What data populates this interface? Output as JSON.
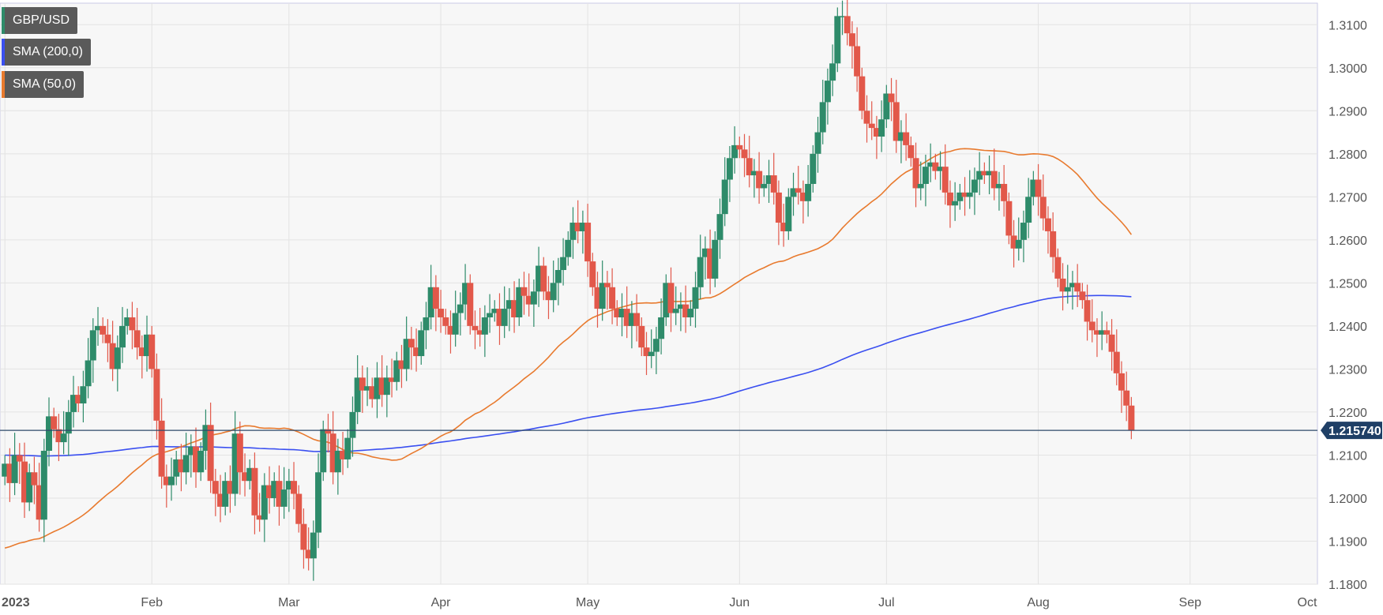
{
  "chart_data": {
    "type": "candlestick",
    "symbol": "GBP/USD",
    "legend": [
      {
        "label": "GBP/USD",
        "color": "#2e8b6a"
      },
      {
        "label": "SMA (200,0)",
        "color": "#3a4ff0"
      },
      {
        "label": "SMA (50,0)",
        "color": "#e87a2e"
      }
    ],
    "current_price": "1.215740",
    "current_price_value": 1.21574,
    "x_ticks": [
      "2023",
      "Feb",
      "Mar",
      "Apr",
      "May",
      "Jun",
      "Jul",
      "Aug",
      "Sep",
      "Oct"
    ],
    "y_ticks": [
      "1.3100",
      "1.3000",
      "1.2900",
      "1.2800",
      "1.2700",
      "1.2600",
      "1.2500",
      "1.2400",
      "1.2300",
      "1.2200",
      "1.2100",
      "1.2000",
      "1.1900",
      "1.1800"
    ],
    "ylim": [
      1.18,
      1.315
    ],
    "xlim_days": [
      -1,
      268
    ],
    "up_color": "#2e8b6a",
    "down_color": "#e2584a",
    "grid": true,
    "closes": [
      [
        0,
        1.208
      ],
      [
        1,
        1.2035
      ],
      [
        2,
        1.21
      ],
      [
        3,
        1.2085
      ],
      [
        4,
        1.199
      ],
      [
        5,
        1.206
      ],
      [
        6,
        1.203
      ],
      [
        7,
        1.195
      ],
      [
        8,
        1.211
      ],
      [
        9,
        1.219
      ],
      [
        10,
        1.216
      ],
      [
        11,
        1.213
      ],
      [
        12,
        1.215
      ],
      [
        13,
        1.22
      ],
      [
        14,
        1.224
      ],
      [
        15,
        1.222
      ],
      [
        16,
        1.226
      ],
      [
        17,
        1.232
      ],
      [
        18,
        1.239
      ],
      [
        19,
        1.24
      ],
      [
        20,
        1.238
      ],
      [
        21,
        1.236
      ],
      [
        22,
        1.23
      ],
      [
        23,
        1.235
      ],
      [
        24,
        1.24
      ],
      [
        25,
        1.242
      ],
      [
        26,
        1.239
      ],
      [
        27,
        1.235
      ],
      [
        28,
        1.233
      ],
      [
        29,
        1.238
      ],
      [
        30,
        1.23
      ],
      [
        31,
        1.218
      ],
      [
        32,
        1.205
      ],
      [
        33,
        1.203
      ],
      [
        34,
        1.205
      ],
      [
        35,
        1.209
      ],
      [
        36,
        1.206
      ],
      [
        37,
        1.21
      ],
      [
        38,
        1.212
      ],
      [
        39,
        1.206
      ],
      [
        40,
        1.211
      ],
      [
        41,
        1.217
      ],
      [
        42,
        1.204
      ],
      [
        43,
        1.201
      ],
      [
        44,
        1.198
      ],
      [
        45,
        1.204
      ],
      [
        46,
        1.201
      ],
      [
        47,
        1.215
      ],
      [
        48,
        1.206
      ],
      [
        49,
        1.204
      ],
      [
        50,
        1.207
      ],
      [
        51,
        1.196
      ],
      [
        52,
        1.195
      ],
      [
        53,
        1.203
      ],
      [
        54,
        1.2
      ],
      [
        55,
        1.204
      ],
      [
        56,
        1.198
      ],
      [
        57,
        1.202
      ],
      [
        58,
        1.204
      ],
      [
        59,
        1.201
      ],
      [
        60,
        1.194
      ],
      [
        61,
        1.188
      ],
      [
        62,
        1.186
      ],
      [
        63,
        1.192
      ],
      [
        64,
        1.206
      ],
      [
        65,
        1.216
      ],
      [
        66,
        1.215
      ],
      [
        67,
        1.206
      ],
      [
        68,
        1.211
      ],
      [
        69,
        1.209
      ],
      [
        70,
        1.214
      ],
      [
        71,
        1.22
      ],
      [
        72,
        1.228
      ],
      [
        73,
        1.225
      ],
      [
        74,
        1.226
      ],
      [
        75,
        1.223
      ],
      [
        76,
        1.228
      ],
      [
        77,
        1.224
      ],
      [
        78,
        1.228
      ],
      [
        79,
        1.227
      ],
      [
        80,
        1.232
      ],
      [
        81,
        1.23
      ],
      [
        82,
        1.237
      ],
      [
        83,
        1.235
      ],
      [
        84,
        1.233
      ],
      [
        85,
        1.239
      ],
      [
        86,
        1.242
      ],
      [
        87,
        1.249
      ],
      [
        88,
        1.244
      ],
      [
        89,
        1.242
      ],
      [
        90,
        1.24
      ],
      [
        91,
        1.238
      ],
      [
        92,
        1.243
      ],
      [
        93,
        1.245
      ],
      [
        94,
        1.25
      ],
      [
        95,
        1.24
      ],
      [
        96,
        1.239
      ],
      [
        97,
        1.238
      ],
      [
        98,
        1.242
      ],
      [
        99,
        1.243
      ],
      [
        100,
        1.244
      ],
      [
        101,
        1.24
      ],
      [
        102,
        1.244
      ],
      [
        103,
        1.246
      ],
      [
        104,
        1.242
      ],
      [
        105,
        1.249
      ],
      [
        106,
        1.247
      ],
      [
        107,
        1.245
      ],
      [
        108,
        1.248
      ],
      [
        109,
        1.254
      ],
      [
        110,
        1.248
      ],
      [
        111,
        1.246
      ],
      [
        112,
        1.25
      ],
      [
        113,
        1.253
      ],
      [
        114,
        1.256
      ],
      [
        115,
        1.26
      ],
      [
        116,
        1.264
      ],
      [
        117,
        1.262
      ],
      [
        118,
        1.264
      ],
      [
        119,
        1.255
      ],
      [
        120,
        1.249
      ],
      [
        121,
        1.244
      ],
      [
        122,
        1.25
      ],
      [
        123,
        1.249
      ],
      [
        124,
        1.244
      ],
      [
        125,
        1.242
      ],
      [
        126,
        1.244
      ],
      [
        127,
        1.24
      ],
      [
        128,
        1.243
      ],
      [
        129,
        1.24
      ],
      [
        130,
        1.235
      ],
      [
        131,
        1.233
      ],
      [
        132,
        1.234
      ],
      [
        133,
        1.237
      ],
      [
        134,
        1.242
      ],
      [
        135,
        1.25
      ],
      [
        136,
        1.243
      ],
      [
        137,
        1.244
      ],
      [
        138,
        1.245
      ],
      [
        139,
        1.242
      ],
      [
        140,
        1.244
      ],
      [
        141,
        1.249
      ],
      [
        142,
        1.256
      ],
      [
        143,
        1.258
      ],
      [
        144,
        1.251
      ],
      [
        145,
        1.26
      ],
      [
        146,
        1.266
      ],
      [
        147,
        1.274
      ],
      [
        148,
        1.279
      ],
      [
        149,
        1.282
      ],
      [
        150,
        1.281
      ],
      [
        151,
        1.279
      ],
      [
        152,
        1.275
      ],
      [
        153,
        1.276
      ],
      [
        154,
        1.272
      ],
      [
        155,
        1.273
      ],
      [
        156,
        1.275
      ],
      [
        157,
        1.271
      ],
      [
        158,
        1.264
      ],
      [
        159,
        1.262
      ],
      [
        160,
        1.27
      ],
      [
        161,
        1.272
      ],
      [
        162,
        1.271
      ],
      [
        163,
        1.269
      ],
      [
        164,
        1.273
      ],
      [
        165,
        1.28
      ],
      [
        166,
        1.285
      ],
      [
        167,
        1.292
      ],
      [
        168,
        1.297
      ],
      [
        169,
        1.301
      ],
      [
        170,
        1.312
      ],
      [
        171,
        1.312
      ],
      [
        172,
        1.308
      ],
      [
        173,
        1.305
      ],
      [
        174,
        1.298
      ],
      [
        175,
        1.29
      ],
      [
        176,
        1.287
      ],
      [
        177,
        1.286
      ],
      [
        178,
        1.284
      ],
      [
        179,
        1.288
      ],
      [
        180,
        1.294
      ],
      [
        181,
        1.292
      ],
      [
        182,
        1.283
      ],
      [
        183,
        1.285
      ],
      [
        184,
        1.282
      ],
      [
        185,
        1.279
      ],
      [
        186,
        1.272
      ],
      [
        187,
        1.273
      ],
      [
        188,
        1.277
      ],
      [
        189,
        1.278
      ],
      [
        190,
        1.276
      ],
      [
        191,
        1.277
      ],
      [
        192,
        1.271
      ],
      [
        193,
        1.268
      ],
      [
        194,
        1.269
      ],
      [
        195,
        1.271
      ],
      [
        196,
        1.27
      ],
      [
        197,
        1.271
      ],
      [
        198,
        1.274
      ],
      [
        199,
        1.276
      ],
      [
        200,
        1.275
      ],
      [
        201,
        1.276
      ],
      [
        202,
        1.272
      ],
      [
        203,
        1.273
      ],
      [
        204,
        1.269
      ],
      [
        205,
        1.261
      ],
      [
        206,
        1.258
      ],
      [
        207,
        1.26
      ],
      [
        208,
        1.264
      ],
      [
        209,
        1.27
      ],
      [
        210,
        1.274
      ],
      [
        211,
        1.27
      ],
      [
        212,
        1.265
      ],
      [
        213,
        1.262
      ],
      [
        214,
        1.256
      ],
      [
        215,
        1.251
      ],
      [
        216,
        1.248
      ],
      [
        217,
        1.249
      ],
      [
        218,
        1.25
      ],
      [
        219,
        1.248
      ],
      [
        220,
        1.246
      ],
      [
        221,
        1.241
      ],
      [
        222,
        1.239
      ],
      [
        223,
        1.238
      ],
      [
        224,
        1.239
      ],
      [
        225,
        1.238
      ],
      [
        226,
        1.234
      ],
      [
        227,
        1.229
      ],
      [
        228,
        1.225
      ],
      [
        229,
        1.2215
      ],
      [
        230,
        1.2157
      ]
    ]
  },
  "icons": {
    "price_marker": "price-tag-icon"
  }
}
